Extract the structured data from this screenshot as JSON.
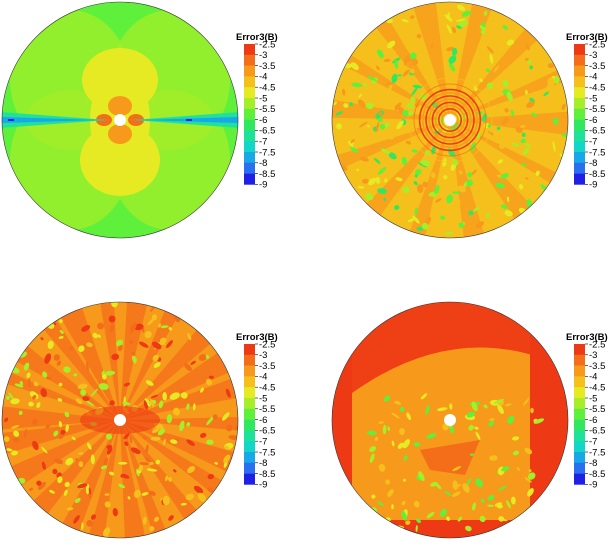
{
  "colors": {
    "scale": [
      "#1f1fe6",
      "#2a6ff0",
      "#18a8e8",
      "#14d6c8",
      "#1fe29a",
      "#30e860",
      "#5ef03a",
      "#a6ee2a",
      "#e6ea22",
      "#f6c01c",
      "#f79a1c",
      "#f46e1a",
      "#ee3a14"
    ],
    "background": "#ffffff",
    "outline": "#333333"
  },
  "chart_data": [
    {
      "type": "heatmap",
      "title": "",
      "legend_title": "Error3(B)",
      "legend_placement": "right",
      "colorbar_ticks": [
        "-2.5",
        "-3",
        "-3.5",
        "-4",
        "-4.5",
        "-5",
        "-5.5",
        "-6",
        "-6.5",
        "-7",
        "-7.5",
        "-8",
        "-8.5",
        "-9"
      ],
      "value_range": [
        -9,
        -2.5
      ],
      "dominant_level": -5.5,
      "pattern": "dipole lobes near center, blue streaks along horizontal axis"
    },
    {
      "type": "heatmap",
      "title": "",
      "legend_title": "Error3(B)",
      "legend_placement": "right",
      "colorbar_ticks": [
        "-2.5",
        "-3",
        "-3.5",
        "-4",
        "-4.5",
        "-5",
        "-5.5",
        "-6",
        "-6.5",
        "-7",
        "-7.5",
        "-8",
        "-8.5",
        "-9"
      ],
      "value_range": [
        -9,
        -2.5
      ],
      "dominant_level": -3.5,
      "pattern": "concentric rings near center, mottled orange/yellow/green field"
    },
    {
      "type": "heatmap",
      "title": "",
      "legend_title": "Error3(B)",
      "legend_placement": "right",
      "colorbar_ticks": [
        "-2.5",
        "-3",
        "-3.5",
        "-4",
        "-4.5",
        "-5",
        "-5.5",
        "-6",
        "-6.5",
        "-7",
        "-7.5",
        "-8",
        "-8.5",
        "-9"
      ],
      "value_range": [
        -9,
        -2.5
      ],
      "dominant_level": -3,
      "pattern": "radial spokes of red-orange with yellow/green speckle"
    },
    {
      "type": "heatmap",
      "title": "",
      "legend_title": "Error3(B)",
      "legend_placement": "right",
      "colorbar_ticks": [
        "-2.5",
        "-3",
        "-3.5",
        "-4",
        "-4.5",
        "-5",
        "-5.5",
        "-6",
        "-6.5",
        "-7",
        "-7.5",
        "-8",
        "-8.5",
        "-9"
      ],
      "value_range": [
        -9,
        -2.5
      ],
      "dominant_level": -3,
      "pattern": "red outer band, orange interior, sparse green patches"
    }
  ]
}
